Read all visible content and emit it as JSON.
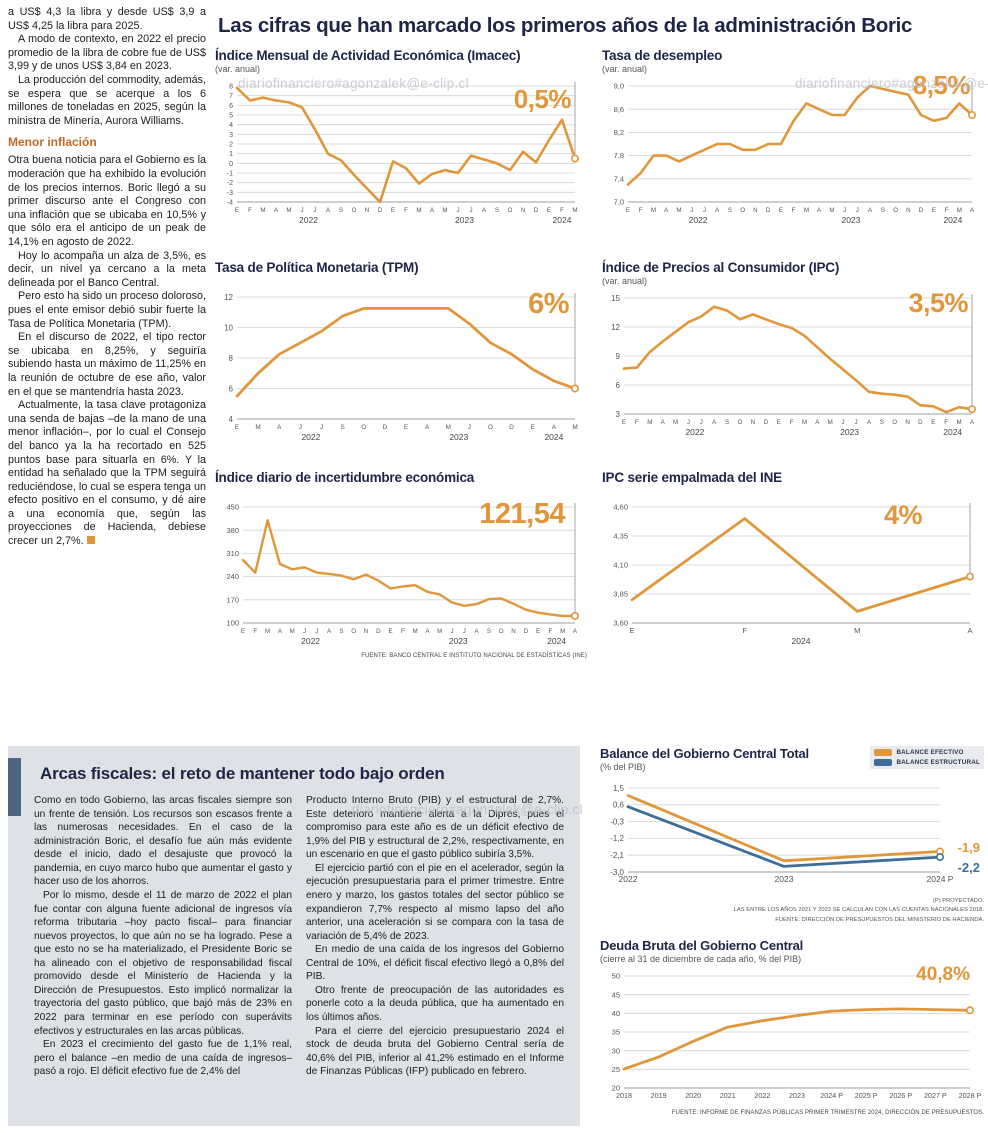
{
  "colors": {
    "accent_orange": "#E0973B",
    "accent_blue": "#3D6D9B",
    "title_navy": "#1E2547",
    "heading_brown": "#BE6A26",
    "panel_gray": "#dee1e5",
    "panel_bar": "#50647F"
  },
  "watermark": "diariofinanciero#agonzalek@e-clip.cl",
  "main_title": "Las cifras que han marcado los primeros años de la administración Boric",
  "left_column": {
    "intro_paragraphs": [
      "a US$ 4,3 la libra y desde US$ 3,9 a US$ 4,25 la libra para 2025.",
      "A modo de contexto, en 2022 el precio promedio de la libra de cobre fue de US$ 3,99 y de unos US$ 3,84 en 2023.",
      "La producción del commodity, además, se espera que se acerque a los 6 millones de toneladas en 2025, según la ministra de Minería, Aurora Williams."
    ],
    "heading": "Menor inflación",
    "body_paragraphs": [
      "Otra buena noticia para el Gobierno es la moderación que ha exhibido la evolución de los precios internos. Boric llegó a su primer discurso ante el Congreso con una inflación que se ubicaba en 10,5% y que sólo era el anticipo de un peak de 14,1% en agosto de 2022.",
      "Hoy lo acompaña un alza de 3,5%, es decir, un nivel ya cercano a la meta delineada por el Banco Central.",
      "Pero esto ha sido un proceso doloroso, pues el ente emisor debió subir fuerte la Tasa de Política Monetaria (TPM).",
      "En el discurso de 2022, el tipo rector se ubicaba en 8,25%, y seguiría subiendo hasta un máximo de 11,25% en la reunión de octubre de ese año, valor en el que se mantendría hasta 2023.",
      "Actualmente, la tasa clave protagoniza una senda de bajas –de la mano de una menor inflación–, por lo cual el Consejo del banco ya la ha recortado en 525 puntos base para situarla en 6%. Y la entidad ha señalado que la TPM seguirá reduciéndose, lo cual se espera tenga un efecto positivo en el consumo, y dé aire a una economía que, según las proyecciones de Hacienda, debiese crecer un 2,7%."
    ]
  },
  "source_note_top": "FUENTE: BANCO CENTRAL E INSTITUTO NACIONAL DE ESTADÍSTICAS (INE)",
  "arcas": {
    "title": "Arcas fiscales: el reto de mantener todo bajo orden",
    "col1": [
      "Como en todo Gobierno, las arcas fiscales siempre son un frente de tensión. Los recursos son escasos frente a las numerosas necesidades. En el caso de la administración Boric, el desafío fue aún más evidente desde el inicio, dado el desajuste que provocó la pandemia, en cuyo marco hubo que aumentar el gasto y hacer uso de los ahorros.",
      "Por lo mismo, desde el 11 de marzo de 2022 el plan fue contar con alguna fuente adicional de ingresos vía reforma tributaria –hoy pacto fiscal– para financiar nuevos proyectos, lo que aún no se ha logrado. Pese a que esto no se ha materializado, el Presidente Boric se ha alineado con el objetivo de responsabilidad fiscal promovido desde el Ministerio de Hacienda y la Dirección de Presupuestos. Esto implicó normalizar la trayectoria del gasto público, que bajó más de 23% en 2022 para terminar en ese período con superávits efectivos y estructurales en las arcas públicas.",
      "En 2023 el crecimiento del gasto fue de 1,1% real, pero el balance –en medio de una caída de ingresos– pasó a rojo. El déficit efectivo fue de 2,4% del"
    ],
    "col2": [
      "Producto Interno Bruto (PIB) y el estructural de 2,7%. Este deterioro mantiene alerta a la Dipres, pues el compromiso para este año es de un déficit efectivo de 1,9% del PIB y estructural de 2,2%, respectivamente, en un escenario en que el gasto público subiría 3,5%.",
      "El ejercicio partió con el pie en el acelerador, según la ejecución presupuestaria para el primer trimestre. Entre enero y marzo, los gastos totales del sector público se expandieron 7,7% respecto al mismo lapso del año anterior, una aceleración si se compara con la tasa de variación de 5,4% de 2023.",
      "En medio de una caída de los ingresos del Gobierno Central de 10%, el déficit fiscal efectivo llegó a 0,8% del PIB.",
      "Otro frente de preocupación de las autoridades es ponerle coto a la deuda pública, que ha aumentado en los últimos años.",
      "Para el cierre del ejercicio presupuestario 2024 el stock de deuda bruta del Gobierno Central sería de 40,6% del PIB, inferior al 41,2% estimado en el Informe de Finanzas Públicas (IFP) publicado en febrero."
    ]
  },
  "chart_data": {
    "imacec": {
      "type": "line",
      "title": "Índice Mensual de Actividad Económica (Imacec)",
      "subtitle": "(var. anual)",
      "big_label": "0,5%",
      "plot": {
        "ylim": [
          -4,
          8
        ],
        "y_ticks": [
          "8",
          "7",
          "6",
          "5",
          "4",
          "3",
          "2",
          "1",
          "0",
          "-1",
          "-2",
          "-3",
          "-4"
        ],
        "x_labels": [
          "E",
          "F",
          "M",
          "A",
          "M",
          "J",
          "J",
          "A",
          "S",
          "O",
          "N",
          "D",
          "E",
          "F",
          "M",
          "A",
          "M",
          "J",
          "J",
          "A",
          "S",
          "O",
          "N",
          "D",
          "E",
          "F",
          "M"
        ],
        "years": [
          {
            "label": "2022",
            "at": 5.5
          },
          {
            "label": "2023",
            "at": 17.5
          },
          {
            "label": "2024",
            "at": 25
          }
        ],
        "series": [
          {
            "name": "Imacec",
            "color": "#E0973B",
            "width": 2.6,
            "end_marker": true,
            "end_line": true,
            "values": [
              7.8,
              6.5,
              6.8,
              6.5,
              6.3,
              5.8,
              3.5,
              1.0,
              0.3,
              -1.2,
              -2.6,
              -4.0,
              0.2,
              -0.5,
              -2.1,
              -1.1,
              -0.7,
              -1.0,
              0.8,
              0.4,
              0.0,
              -0.7,
              1.2,
              0.1,
              2.4,
              4.5,
              0.5
            ]
          }
        ]
      }
    },
    "desempleo": {
      "type": "line",
      "title": "Tasa de desempleo",
      "subtitle": "(var. anual)",
      "big_label": "8,5%",
      "plot": {
        "ylim": [
          7.0,
          9.0
        ],
        "y_ticks": [
          "9,0",
          "8,6",
          "8,2",
          "7,8",
          "7,4",
          "7,0"
        ],
        "x_labels": [
          "E",
          "F",
          "M",
          "A",
          "M",
          "J",
          "J",
          "A",
          "S",
          "O",
          "N",
          "D",
          "E",
          "F",
          "M",
          "A",
          "M",
          "J",
          "J",
          "A",
          "S",
          "O",
          "N",
          "D",
          "E",
          "F",
          "M",
          "A"
        ],
        "years": [
          {
            "label": "2022",
            "at": 5.5
          },
          {
            "label": "2023",
            "at": 17.5
          },
          {
            "label": "2024",
            "at": 25.5
          }
        ],
        "series": [
          {
            "name": "Tasa de desempleo",
            "color": "#E0973B",
            "width": 2.6,
            "end_marker": true,
            "end_line": true,
            "values": [
              7.3,
              7.5,
              7.8,
              7.8,
              7.7,
              7.8,
              7.9,
              8.0,
              8.0,
              7.9,
              7.9,
              8.0,
              8.0,
              8.4,
              8.7,
              8.6,
              8.5,
              8.5,
              8.8,
              9.0,
              8.95,
              8.9,
              8.85,
              8.5,
              8.4,
              8.45,
              8.7,
              8.5
            ]
          }
        ]
      }
    },
    "tpm": {
      "type": "line",
      "title": "Tasa de Política Monetaria (TPM)",
      "big_label": "6%",
      "plot": {
        "ylim": [
          4,
          12
        ],
        "y_ticks": [
          "12",
          "10",
          "8",
          "6",
          "4"
        ],
        "x_labels": [
          "E",
          "M",
          "A",
          "J",
          "J",
          "S",
          "O",
          "D",
          "E",
          "A",
          "M",
          "J",
          "O",
          "D",
          "E",
          "A",
          "M"
        ],
        "years": [
          {
            "label": "2022",
            "at": 3.5
          },
          {
            "label": "2023",
            "at": 10.5
          },
          {
            "label": "2024",
            "at": 15
          }
        ],
        "series": [
          {
            "name": "TPM",
            "color": "#E0973B",
            "width": 2.8,
            "end_marker": true,
            "end_line": true,
            "values": [
              5.5,
              7.0,
              8.25,
              9.0,
              9.75,
              10.75,
              11.25,
              11.25,
              11.25,
              11.25,
              11.25,
              10.25,
              9.0,
              8.25,
              7.25,
              6.5,
              6.0
            ]
          }
        ]
      }
    },
    "ipc": {
      "type": "line",
      "title": "Índice de Precios al Consumidor (IPC)",
      "subtitle": "(var. anual)",
      "big_label": "3,5%",
      "plot": {
        "ylim": [
          3,
          15
        ],
        "y_ticks": [
          "15",
          "12",
          "9",
          "6",
          "3"
        ],
        "x_labels": [
          "E",
          "F",
          "M",
          "A",
          "M",
          "J",
          "J",
          "A",
          "S",
          "O",
          "N",
          "D",
          "E",
          "F",
          "M",
          "A",
          "M",
          "J",
          "J",
          "A",
          "S",
          "O",
          "N",
          "D",
          "E",
          "F",
          "M",
          "A"
        ],
        "years": [
          {
            "label": "2022",
            "at": 5.5
          },
          {
            "label": "2023",
            "at": 17.5
          },
          {
            "label": "2024",
            "at": 25.5
          }
        ],
        "series": [
          {
            "name": "IPC",
            "color": "#E0973B",
            "width": 2.6,
            "end_marker": true,
            "end_line": true,
            "values": [
              7.7,
              7.8,
              9.4,
              10.5,
              11.5,
              12.5,
              13.1,
              14.1,
              13.7,
              12.8,
              13.3,
              12.8,
              12.3,
              11.9,
              11.1,
              9.9,
              8.7,
              7.6,
              6.5,
              5.3,
              5.1,
              5.0,
              4.8,
              3.9,
              3.8,
              3.2,
              3.7,
              3.5
            ]
          }
        ]
      }
    },
    "incertidumbre": {
      "type": "line",
      "title": "Índice diario de incertidumbre económica",
      "big_label": "121,54",
      "plot": {
        "ylim": [
          100,
          450
        ],
        "y_ticks": [
          "450",
          "380",
          "310",
          "240",
          "170",
          "100"
        ],
        "x_labels": [
          "E",
          "F",
          "M",
          "A",
          "M",
          "J",
          "J",
          "A",
          "S",
          "O",
          "N",
          "D",
          "E",
          "F",
          "M",
          "A",
          "M",
          "J",
          "J",
          "A",
          "S",
          "O",
          "N",
          "D",
          "E",
          "F",
          "M",
          "A"
        ],
        "years": [
          {
            "label": "2022",
            "at": 5.5
          },
          {
            "label": "2023",
            "at": 17.5
          },
          {
            "label": "2024",
            "at": 25.5
          }
        ],
        "series": [
          {
            "name": "Incertidumbre económica",
            "color": "#E0973B",
            "width": 2.4,
            "end_marker": true,
            "end_line": true,
            "values": [
              290,
              252,
              410,
              278,
              262,
              268,
              252,
              248,
              243,
              232,
              246,
              228,
              204,
              210,
              214,
              194,
              186,
              162,
              152,
              157,
              172,
              174,
              158,
              140,
              131,
              126,
              121,
              121.54
            ]
          }
        ]
      }
    },
    "ipc_ine": {
      "type": "line",
      "title": "IPC serie empalmada del INE",
      "big_label": "4%",
      "plot": {
        "ylim": [
          3.6,
          4.6
        ],
        "y_ticks": [
          "4,60",
          "4,35",
          "4,10",
          "3,85",
          "3,60"
        ],
        "x_labels": [
          "E",
          "F",
          "M",
          "A"
        ],
        "years": [
          {
            "label": "2024",
            "at": 1.5
          }
        ],
        "series": [
          {
            "name": "IPC serie empalmada",
            "color": "#E0973B",
            "width": 2.8,
            "end_marker": true,
            "end_line": true,
            "values": [
              3.8,
              4.5,
              3.7,
              4.0
            ]
          }
        ]
      }
    },
    "balance": {
      "type": "line",
      "title": "Balance del Gobierno Central Total",
      "subtitle": "(% del PIB)",
      "legend": [
        {
          "label": "BALANCE EFECTIVO",
          "color": "#E0973B"
        },
        {
          "label": "BALANCE ESTRUCTURAL",
          "color": "#3D6D9B"
        }
      ],
      "end_labels": [
        {
          "text": "-1,9"
        },
        {
          "text": "-2,2"
        }
      ],
      "footnotes": [
        "(P) PROYECTADO.",
        "LAS ENTRE LOS AÑOS 2021 Y 2023 SE CALCULAN CON LAS CUENTAS NACIONALES 2018.",
        "FUENTE: DIRECCIÓN DE PRESUPUESTOS DEL MINISTERIO DE HACIENDA."
      ],
      "plot": {
        "ylim": [
          -3.0,
          1.5
        ],
        "y_ticks": [
          "1,5",
          "0,6",
          "-0,3",
          "-1,2",
          "-2,1",
          "-3,0"
        ],
        "x_labels": [
          "2022",
          "2023",
          "2024 P"
        ],
        "years": [],
        "series": [
          {
            "name": "Balance efectivo",
            "color": "#E0973B",
            "width": 2.8,
            "end_marker": true,
            "values": [
              1.1,
              -2.4,
              -1.9
            ]
          },
          {
            "name": "Balance estructural",
            "color": "#3D6D9B",
            "width": 2.8,
            "end_marker": true,
            "values": [
              0.5,
              -2.7,
              -2.2
            ]
          }
        ]
      }
    },
    "deuda": {
      "type": "line",
      "title": "Deuda Bruta del Gobierno Central",
      "subtitle": "(cierre al 31 de diciembre de cada año, % del PIB)",
      "big_label": "40,8%",
      "footnote": "FUENTE: INFORME DE FINANZAS PÚBLICAS PRIMER TRIMESTRE 2024, DIRECCIÓN DE PRESUPUESTOS.",
      "plot": {
        "ylim": [
          20,
          50
        ],
        "y_ticks": [
          "50",
          "45",
          "40",
          "35",
          "30",
          "25",
          "20"
        ],
        "x_labels": [
          "2018",
          "2019",
          "2020",
          "2021",
          "2022",
          "2023",
          "2024 P",
          "2025 P",
          "2026 P",
          "2027 P",
          "2028 P"
        ],
        "years": [],
        "series": [
          {
            "name": "Deuda bruta",
            "color": "#E0973B",
            "width": 2.8,
            "end_marker": true,
            "values": [
              25.1,
              28.3,
              32.5,
              36.3,
              38.0,
              39.4,
              40.6,
              41.0,
              41.2,
              41.0,
              40.8
            ]
          }
        ]
      }
    }
  }
}
